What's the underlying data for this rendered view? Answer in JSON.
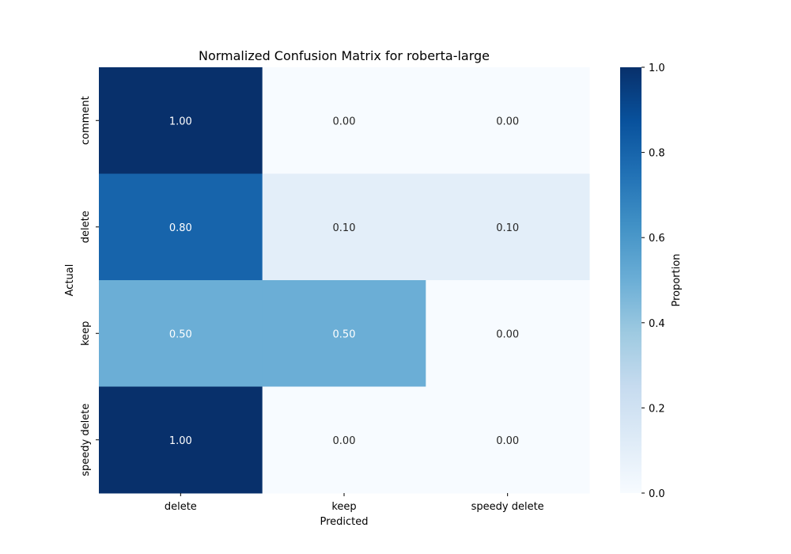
{
  "chart_data": {
    "type": "heatmap",
    "title": "Normalized Confusion Matrix for roberta-large",
    "xlabel": "Predicted",
    "ylabel": "Actual",
    "x_categories": [
      "delete",
      "keep",
      "speedy delete"
    ],
    "y_categories": [
      "comment",
      "delete",
      "keep",
      "speedy delete"
    ],
    "values": [
      [
        1.0,
        0.0,
        0.0
      ],
      [
        0.8,
        0.1,
        0.1
      ],
      [
        0.5,
        0.5,
        0.0
      ],
      [
        1.0,
        0.0,
        0.0
      ]
    ],
    "value_labels": [
      [
        "1.00",
        "0.00",
        "0.00"
      ],
      [
        "0.80",
        "0.10",
        "0.10"
      ],
      [
        "0.50",
        "0.50",
        "0.00"
      ],
      [
        "1.00",
        "0.00",
        "0.00"
      ]
    ],
    "colormap": "Blues",
    "colorbar": {
      "label": "Proportion",
      "range": [
        0.0,
        1.0
      ],
      "tick_labels": [
        "0.0",
        "0.2",
        "0.4",
        "0.6",
        "0.8",
        "1.0"
      ]
    }
  }
}
